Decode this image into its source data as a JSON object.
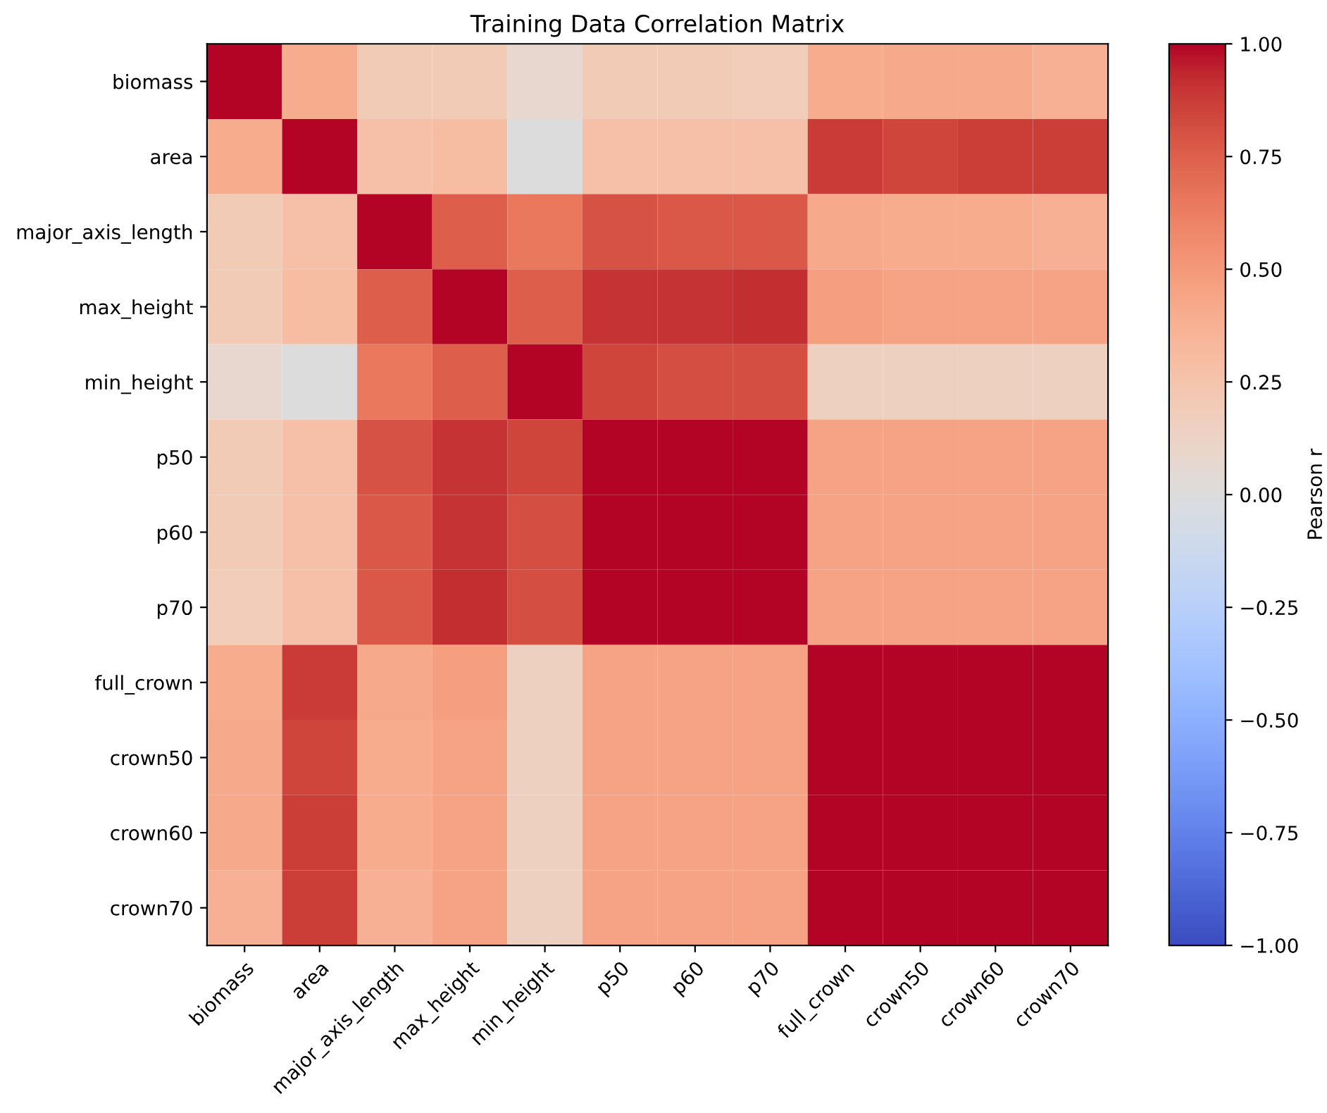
{
  "chart_data": {
    "type": "heatmap",
    "title": "Training Data Correlation Matrix",
    "clabel": "Pearson r",
    "categories": [
      "biomass",
      "area",
      "major_axis_length",
      "max_height",
      "min_height",
      "p50",
      "p60",
      "p70",
      "full_crown",
      "crown50",
      "crown60",
      "crown70"
    ],
    "y_categories": [
      "biomass",
      "area",
      "major_axis_length",
      "max_height",
      "min_height",
      "p50",
      "p60",
      "p70",
      "full_crown",
      "crown50",
      "crown60",
      "crown70"
    ],
    "cells": [
      [
        1,
        0.4,
        0.2,
        0.2,
        0.08,
        0.2,
        0.2,
        0.18,
        0.4,
        0.42,
        0.42,
        0.38
      ],
      [
        0.4,
        1,
        0.28,
        0.3,
        0.0,
        0.28,
        0.28,
        0.28,
        0.88,
        0.85,
        0.87,
        0.87
      ],
      [
        0.2,
        0.28,
        1,
        0.75,
        0.65,
        0.8,
        0.78,
        0.78,
        0.42,
        0.4,
        0.4,
        0.38
      ],
      [
        0.2,
        0.3,
        0.75,
        1,
        0.75,
        0.9,
        0.9,
        0.92,
        0.47,
        0.45,
        0.45,
        0.45
      ],
      [
        0.08,
        0.0,
        0.65,
        0.75,
        1,
        0.85,
        0.82,
        0.82,
        0.15,
        0.15,
        0.15,
        0.15
      ],
      [
        0.2,
        0.28,
        0.8,
        0.9,
        0.85,
        1,
        1,
        1,
        0.45,
        0.45,
        0.45,
        0.45
      ],
      [
        0.2,
        0.28,
        0.78,
        0.9,
        0.82,
        1,
        1,
        1,
        0.45,
        0.45,
        0.45,
        0.45
      ],
      [
        0.18,
        0.28,
        0.78,
        0.92,
        0.82,
        1,
        1,
        1,
        0.45,
        0.45,
        0.45,
        0.45
      ],
      [
        0.4,
        0.88,
        0.42,
        0.47,
        0.15,
        0.45,
        0.45,
        0.45,
        1,
        1,
        1,
        1
      ],
      [
        0.42,
        0.85,
        0.4,
        0.45,
        0.15,
        0.45,
        0.45,
        0.45,
        1,
        1,
        1,
        1
      ],
      [
        0.42,
        0.87,
        0.4,
        0.45,
        0.15,
        0.45,
        0.45,
        0.45,
        1,
        1,
        1,
        1
      ],
      [
        0.38,
        0.87,
        0.38,
        0.45,
        0.15,
        0.45,
        0.45,
        0.45,
        1,
        1,
        1,
        1
      ]
    ],
    "clim": [
      -1,
      1
    ],
    "cticks": [
      {
        "value": -1,
        "label": "−1.00"
      },
      {
        "value": -0.75,
        "label": "−0.75"
      },
      {
        "value": -0.5,
        "label": "−0.50"
      },
      {
        "value": -0.25,
        "label": "−0.25"
      },
      {
        "value": 0,
        "label": "0.00"
      },
      {
        "value": 0.25,
        "label": "0.25"
      },
      {
        "value": 0.5,
        "label": "0.50"
      },
      {
        "value": 0.75,
        "label": "0.75"
      },
      {
        "value": 1,
        "label": "1.00"
      }
    ]
  }
}
